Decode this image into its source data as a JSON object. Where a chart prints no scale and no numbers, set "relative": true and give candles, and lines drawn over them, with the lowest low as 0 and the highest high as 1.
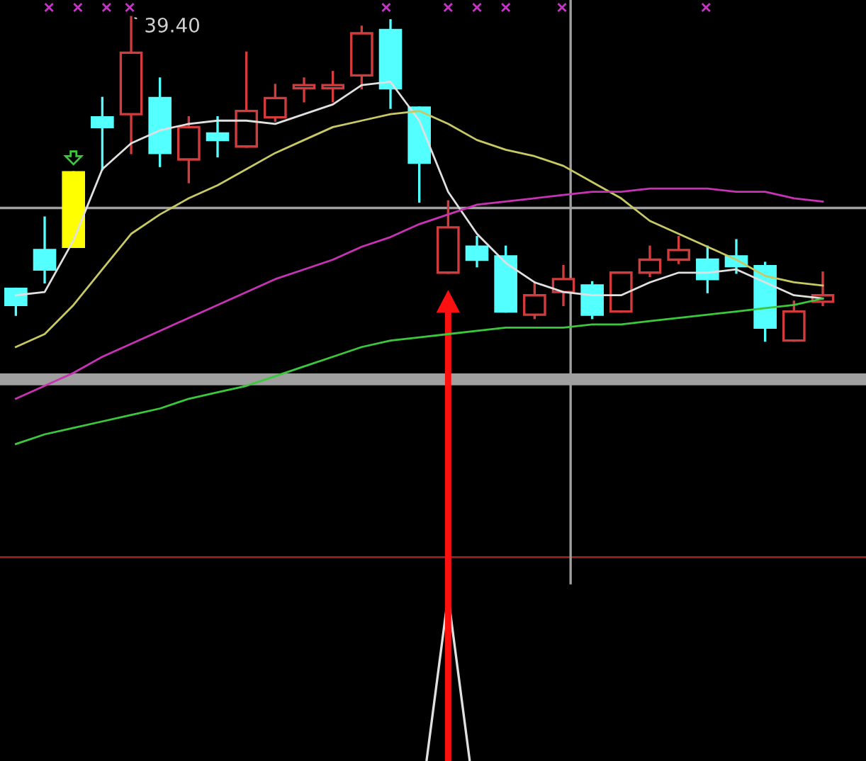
{
  "chart_data": {
    "type": "candlestick",
    "relative": true,
    "categories": [
      null,
      null,
      null,
      null,
      null,
      null,
      null,
      null,
      null,
      null,
      null,
      null,
      null,
      null,
      null,
      null,
      null,
      null,
      null,
      null,
      null,
      null,
      null,
      null,
      null,
      null,
      null,
      null,
      null
    ],
    "ohlc": [
      [
        0.16,
        0.16,
        0.08,
        0.11
      ],
      [
        0.28,
        0.38,
        0.18,
        0.22
      ],
      [
        0.29,
        0.52,
        0.29,
        0.52
      ],
      [
        0.69,
        0.75,
        0.53,
        0.66
      ],
      [
        0.7,
        1.0,
        0.58,
        0.89
      ],
      [
        0.75,
        0.81,
        0.54,
        0.58
      ],
      [
        0.56,
        0.69,
        0.49,
        0.66
      ],
      [
        0.64,
        0.69,
        0.57,
        0.62
      ],
      [
        0.6,
        0.89,
        0.6,
        0.71
      ],
      [
        0.69,
        0.79,
        0.68,
        0.75
      ],
      [
        0.78,
        0.81,
        0.74,
        0.79
      ],
      [
        0.78,
        0.83,
        0.74,
        0.79
      ],
      [
        0.82,
        0.97,
        0.78,
        0.95
      ],
      [
        0.96,
        0.99,
        0.72,
        0.78
      ],
      [
        0.72,
        0.72,
        0.43,
        0.55
      ],
      [
        0.21,
        0.43,
        0.21,
        0.35
      ],
      [
        0.29,
        0.32,
        0.23,
        0.25
      ],
      [
        0.26,
        0.29,
        0.09,
        0.09
      ],
      [
        0.08,
        0.18,
        0.07,
        0.14
      ],
      [
        0.15,
        0.23,
        0.11,
        0.19
      ],
      [
        0.17,
        0.18,
        0.07,
        0.08
      ],
      [
        0.09,
        0.21,
        0.09,
        0.21
      ],
      [
        0.21,
        0.29,
        0.2,
        0.25
      ],
      [
        0.25,
        0.32,
        0.24,
        0.28
      ],
      [
        0.25,
        0.29,
        0.15,
        0.19
      ],
      [
        0.26,
        0.31,
        0.21,
        0.23
      ],
      [
        0.23,
        0.24,
        0.0,
        0.04
      ],
      [
        0.0,
        0.12,
        0.0,
        0.09
      ],
      [
        0.12,
        0.21,
        0.11,
        0.14
      ]
    ],
    "colors": [
      "#54ffff",
      "#54ffff",
      "#ffff00",
      "#54ffff",
      "#d23c3c",
      "#54ffff",
      "#d23c3c",
      "#54ffff",
      "#d23c3c",
      "#d23c3c",
      "#d23c3c",
      "#d23c3c",
      "#d23c3c",
      "#54ffff",
      "#54ffff",
      "#d23c3c",
      "#54ffff",
      "#54ffff",
      "#d23c3c",
      "#d23c3c",
      "#54ffff",
      "#d23c3c",
      "#d23c3c",
      "#d23c3c",
      "#54ffff",
      "#54ffff",
      "#54ffff",
      "#d23c3c",
      "#d23c3c"
    ],
    "series": [
      {
        "type": "line",
        "color": "#e0e0e0",
        "values": [
          0.14,
          0.15,
          0.31,
          0.53,
          0.61,
          0.65,
          0.67,
          0.68,
          0.68,
          0.67,
          0.7,
          0.73,
          0.79,
          0.8,
          0.68,
          0.46,
          0.33,
          0.24,
          0.18,
          0.15,
          0.14,
          0.14,
          0.18,
          0.21,
          0.21,
          0.22,
          0.18,
          0.14,
          0.13
        ]
      },
      {
        "type": "line",
        "color": "#c8c864",
        "values": [
          -0.02,
          0.02,
          0.11,
          0.22,
          0.33,
          0.39,
          0.44,
          0.48,
          0.53,
          0.58,
          0.62,
          0.66,
          0.68,
          0.7,
          0.71,
          0.67,
          0.62,
          0.59,
          0.57,
          0.54,
          0.49,
          0.44,
          0.37,
          0.33,
          0.29,
          0.25,
          0.2,
          0.18,
          0.17
        ]
      },
      {
        "type": "line",
        "color": "#c832b4",
        "values": [
          -0.18,
          -0.14,
          -0.1,
          -0.05,
          -0.01,
          0.03,
          0.07,
          0.11,
          0.15,
          0.19,
          0.22,
          0.25,
          0.29,
          0.32,
          0.36,
          0.39,
          0.42,
          0.43,
          0.44,
          0.45,
          0.46,
          0.46,
          0.47,
          0.47,
          0.47,
          0.46,
          0.46,
          0.44,
          0.43
        ]
      },
      {
        "type": "line",
        "color": "#3cc83c",
        "values": [
          -0.32,
          -0.29,
          -0.27,
          -0.25,
          -0.23,
          -0.21,
          -0.18,
          -0.16,
          -0.14,
          -0.11,
          -0.08,
          -0.05,
          -0.02,
          0.0,
          0.01,
          0.02,
          0.03,
          0.04,
          0.04,
          0.04,
          0.05,
          0.05,
          0.06,
          0.07,
          0.08,
          0.09,
          0.1,
          0.11,
          0.13
        ]
      }
    ],
    "ref_lines": [
      {
        "axis": "y",
        "value": 0.41,
        "color": "#a0a0a0"
      }
    ],
    "annotations": [
      "39.40"
    ]
  }
}
